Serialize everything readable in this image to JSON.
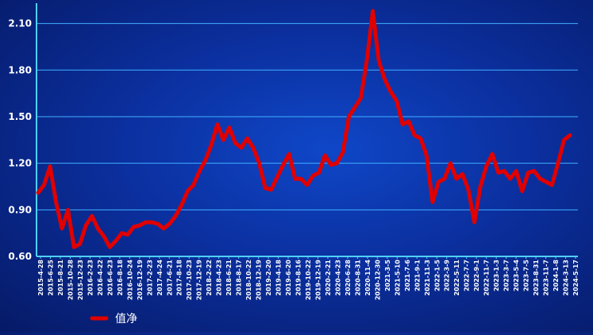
{
  "chart_data": {
    "type": "line",
    "title": "",
    "xlabel": "",
    "ylabel": "",
    "ylim": [
      0.6,
      2.2
    ],
    "yticks": [
      0.6,
      0.9,
      1.2,
      1.5,
      1.8,
      2.1
    ],
    "ytick_labels": [
      "0.60",
      "0.90",
      "1.20",
      "1.50",
      "1.80",
      "2.10"
    ],
    "grid": "horizontal",
    "legend_position": "bottom-left",
    "colors": {
      "series": "#e00000",
      "grid": "#3fb0ff",
      "axis": "#4fd0ff",
      "text": "#ffffff"
    },
    "x_tick_labels": [
      "2015-4-28",
      "2015-6-25",
      "2015-8-21",
      "2015-10-28",
      "2015-12-23",
      "2016-2-23",
      "2016-4-22",
      "2016-6-23",
      "2016-8-18",
      "2016-10-24",
      "2016-12-19",
      "2017-2-23",
      "2017-4-24",
      "2017-6-21",
      "2017-8-18",
      "2017-10-23",
      "2017-12-19",
      "2018-2-22",
      "2018-4-23",
      "2018-6-21",
      "2018-8-17",
      "2018-10-22",
      "2018-12-19",
      "2019-2-20",
      "2019-4-18",
      "2019-6-20",
      "2019-8-16",
      "2019-10-22",
      "2019-12-19",
      "2020-2-21",
      "2020-4-23",
      "2020-6-28",
      "2020-8-31",
      "2020-11-4",
      "2020-12-30",
      "2021-3-5",
      "2021-5-10",
      "2021-7-6",
      "2021-9-1",
      "2021-11-3",
      "2022-1-5",
      "2022-3-9",
      "2022-5-11",
      "2022-7-7",
      "2022-9-1",
      "2022-11-7",
      "2023-1-3",
      "2023-3-7",
      "2023-5-4",
      "2023-7-5",
      "2023-8-31",
      "2023-11-7",
      "2024-1-8",
      "2024-3-13",
      "2024-5-17"
    ],
    "series": [
      {
        "name": "值净",
        "values": [
          1.01,
          1.06,
          1.18,
          0.95,
          0.78,
          0.9,
          0.66,
          0.68,
          0.8,
          0.86,
          0.78,
          0.73,
          0.66,
          0.7,
          0.75,
          0.74,
          0.79,
          0.8,
          0.82,
          0.82,
          0.81,
          0.78,
          0.81,
          0.86,
          0.93,
          1.02,
          1.06,
          1.15,
          1.22,
          1.32,
          1.45,
          1.35,
          1.43,
          1.33,
          1.3,
          1.36,
          1.3,
          1.2,
          1.04,
          1.03,
          1.11,
          1.19,
          1.26,
          1.1,
          1.1,
          1.06,
          1.12,
          1.14,
          1.25,
          1.19,
          1.2,
          1.27,
          1.5,
          1.56,
          1.62,
          1.86,
          2.18,
          1.86,
          1.74,
          1.66,
          1.6,
          1.45,
          1.47,
          1.38,
          1.36,
          1.25,
          0.95,
          1.08,
          1.1,
          1.2,
          1.1,
          1.13,
          1.03,
          0.82,
          1.05,
          1.18,
          1.26,
          1.14,
          1.15,
          1.1,
          1.15,
          1.02,
          1.14,
          1.15,
          1.1,
          1.08,
          1.06,
          1.2,
          1.35,
          1.38
        ]
      }
    ]
  }
}
